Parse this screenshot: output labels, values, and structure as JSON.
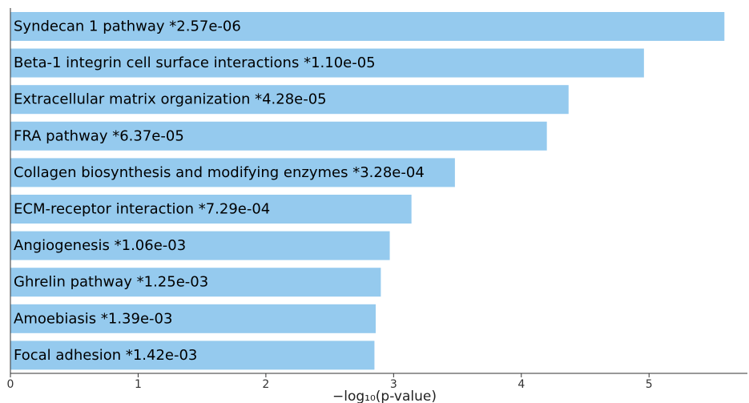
{
  "chart_data": {
    "type": "bar",
    "orientation": "horizontal",
    "bar_color": "#95CAEE",
    "categories": [
      "Syndecan 1 pathway",
      "Beta-1 integrin cell surface interactions",
      "Extracellular matrix organization",
      "FRA pathway",
      "Collagen biosynthesis and modifying enzymes",
      "ECM-receptor interaction",
      "Angiogenesis",
      "Ghrelin pathway",
      "Amoebiasis",
      "Focal adhesion"
    ],
    "bar_labels": [
      "Syndecan 1 pathway  *2.57e-06",
      "Beta-1 integrin cell surface interactions  *1.10e-05",
      "Extracellular matrix organization  *4.28e-05",
      "FRA pathway  *6.37e-05",
      "Collagen biosynthesis and modifying enzymes  *3.28e-04",
      "ECM-receptor interaction  *7.29e-04",
      "Angiogenesis  *1.06e-03",
      "Ghrelin pathway  *1.25e-03",
      "Amoebiasis  *1.39e-03",
      "Focal adhesion  *1.42e-03"
    ],
    "values": [
      5.59,
      4.96,
      4.37,
      4.2,
      3.48,
      3.14,
      2.97,
      2.9,
      2.86,
      2.85
    ],
    "xlabel": "−log₁₀(p-value)",
    "xlim": [
      0,
      5.77
    ],
    "xticks": [
      0,
      1,
      2,
      3,
      4,
      5
    ],
    "xtick_labels": [
      "0",
      "1",
      "2",
      "3",
      "4",
      "5"
    ],
    "grid": false
  }
}
